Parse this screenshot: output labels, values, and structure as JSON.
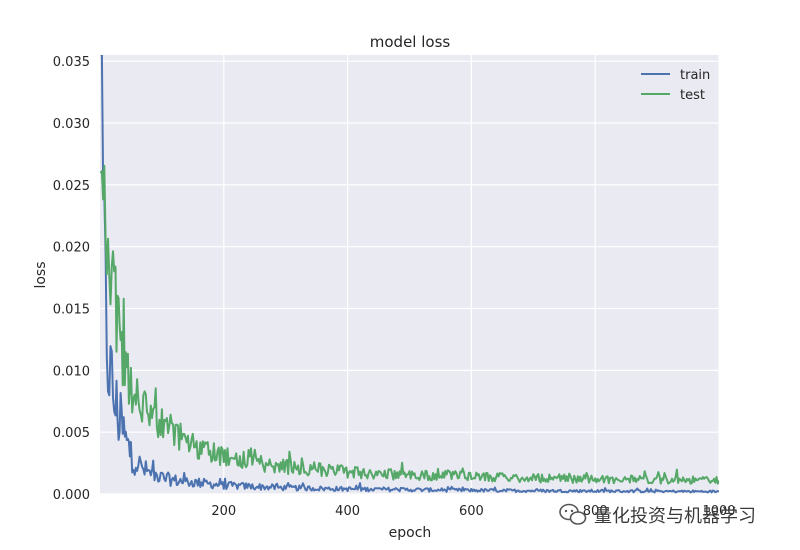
{
  "chart_data": {
    "type": "line",
    "title": "model loss",
    "xlabel": "epoch",
    "ylabel": "loss",
    "xlim": [
      0,
      1000
    ],
    "ylim": [
      0,
      0.0355
    ],
    "xticks": [
      200,
      400,
      600,
      800,
      1000
    ],
    "yticks": [
      0.0,
      0.005,
      0.01,
      0.015,
      0.02,
      0.025,
      0.03,
      0.035
    ],
    "ytick_labels": [
      "0.000",
      "0.005",
      "0.010",
      "0.015",
      "0.020",
      "0.025",
      "0.030",
      "0.035"
    ],
    "xtick_labels": [
      "200",
      "400",
      "600",
      "800",
      "1000"
    ],
    "grid": true,
    "legend_position": "top-right",
    "series": [
      {
        "name": "train",
        "color": "#4c72b0",
        "x": [
          1,
          3,
          5,
          7,
          9,
          11,
          13,
          15,
          17,
          19,
          21,
          25,
          30,
          35,
          40,
          45,
          50,
          60,
          70,
          80,
          90,
          100,
          120,
          140,
          160,
          180,
          200,
          250,
          300,
          350,
          400,
          450,
          500,
          550,
          600,
          650,
          700,
          750,
          800,
          850,
          900,
          950,
          1000
        ],
        "values": [
          0.035,
          0.028,
          0.022,
          0.018,
          0.015,
          0.013,
          0.0115,
          0.0105,
          0.0095,
          0.0088,
          0.008,
          0.0072,
          0.0062,
          0.0055,
          0.0045,
          0.0038,
          0.0032,
          0.0025,
          0.002,
          0.0017,
          0.0015,
          0.0013,
          0.0011,
          0.001,
          0.0009,
          0.0008,
          0.0007,
          0.0006,
          0.0005,
          0.00045,
          0.0004,
          0.00038,
          0.00035,
          0.00032,
          0.0003,
          0.00028,
          0.00026,
          0.00025,
          0.00024,
          0.00023,
          0.00022,
          0.00021,
          0.0002
        ]
      },
      {
        "name": "test",
        "color": "#55a868",
        "x": [
          1,
          3,
          5,
          7,
          9,
          11,
          13,
          15,
          17,
          19,
          21,
          25,
          30,
          35,
          40,
          45,
          50,
          60,
          70,
          80,
          90,
          100,
          120,
          140,
          160,
          180,
          200,
          250,
          300,
          350,
          400,
          450,
          500,
          550,
          600,
          650,
          700,
          750,
          800,
          850,
          900,
          950,
          1000
        ],
        "values": [
          0.021,
          0.024,
          0.026,
          0.0265,
          0.025,
          0.0235,
          0.022,
          0.0205,
          0.019,
          0.0175,
          0.016,
          0.0145,
          0.013,
          0.0118,
          0.0108,
          0.01,
          0.0092,
          0.0082,
          0.0074,
          0.0067,
          0.0061,
          0.0056,
          0.0048,
          0.0042,
          0.0037,
          0.0033,
          0.003,
          0.0025,
          0.0022,
          0.002,
          0.0018,
          0.0016,
          0.00155,
          0.0015,
          0.0014,
          0.00135,
          0.0013,
          0.00125,
          0.0012,
          0.00118,
          0.00115,
          0.00112,
          0.0011
        ]
      }
    ]
  },
  "watermark": {
    "text": "量化投资与机器学习",
    "icon": "wechat-icon"
  },
  "colors": {
    "plot_bg": "#eaeaf2",
    "grid": "#ffffff",
    "train": "#4c72b0",
    "test": "#55a868"
  }
}
